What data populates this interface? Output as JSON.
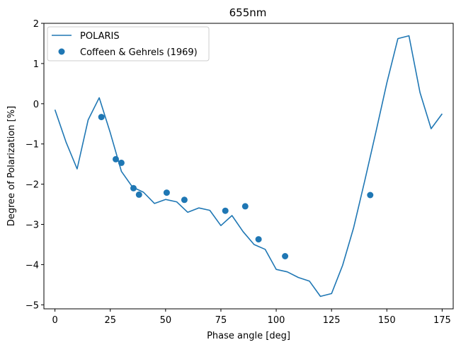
{
  "chart_data": {
    "type": "line",
    "title": "655nm",
    "xlabel": "Phase angle [deg]",
    "ylabel": "Degree of Polarization [%]",
    "xlim": [
      -5,
      180
    ],
    "ylim": [
      -5.1,
      2.0
    ],
    "xticks": [
      0,
      25,
      50,
      75,
      100,
      125,
      150,
      175
    ],
    "yticks": [
      -5,
      -4,
      -3,
      -2,
      -1,
      0,
      1,
      2
    ],
    "grid": false,
    "legend": "top-left",
    "colors": {
      "series": "#1f77b4"
    },
    "series": [
      {
        "name": "POLARIS",
        "kind": "line",
        "x": [
          0,
          5,
          10,
          15,
          20,
          25,
          30,
          35,
          40,
          45,
          50,
          55,
          60,
          65,
          70,
          75,
          80,
          85,
          90,
          95,
          100,
          105,
          110,
          115,
          120,
          125,
          130,
          135,
          140,
          145,
          150,
          155,
          160,
          165,
          170,
          175
        ],
        "y": [
          -0.15,
          -0.95,
          -1.62,
          -0.4,
          0.15,
          -0.72,
          -1.68,
          -2.07,
          -2.2,
          -2.48,
          -2.38,
          -2.44,
          -2.7,
          -2.59,
          -2.65,
          -3.03,
          -2.78,
          -3.18,
          -3.5,
          -3.62,
          -4.12,
          -4.18,
          -4.32,
          -4.41,
          -4.79,
          -4.72,
          -4.02,
          -3.08,
          -1.92,
          -0.72,
          0.52,
          1.62,
          1.69,
          0.28,
          -0.62,
          -0.25
        ]
      },
      {
        "name": "Coffeen & Gehrels (1969)",
        "kind": "scatter",
        "x": [
          21,
          27.5,
          30,
          35.5,
          38,
          50.5,
          58.5,
          77,
          86,
          92,
          104,
          142.5
        ],
        "y": [
          -0.33,
          -1.38,
          -1.47,
          -2.1,
          -2.26,
          -2.21,
          -2.39,
          -2.66,
          -2.55,
          -3.37,
          -3.79,
          -2.27
        ]
      }
    ]
  }
}
